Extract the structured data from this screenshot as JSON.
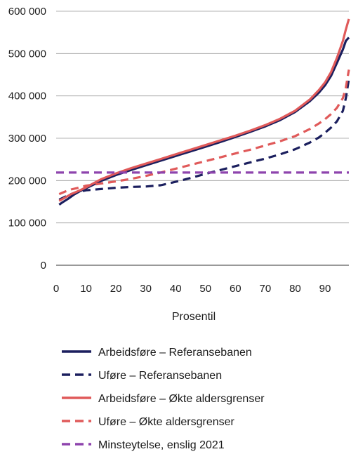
{
  "chart_data": {
    "type": "line",
    "xlabel": "Prosentil",
    "ylabel": "",
    "xlim": [
      0,
      98
    ],
    "ylim": [
      0,
      600000
    ],
    "x_ticks": [
      0,
      10,
      20,
      30,
      40,
      50,
      60,
      70,
      80,
      90
    ],
    "x_tick_labels": [
      "0",
      "10",
      "20",
      "30",
      "40",
      "50",
      "60",
      "70",
      "80",
      "90"
    ],
    "y_ticks": [
      0,
      100000,
      200000,
      300000,
      400000,
      500000,
      600000
    ],
    "y_tick_labels": [
      "0",
      "100 000",
      "200 000",
      "300 000",
      "400 000",
      "500 000",
      "600 000"
    ],
    "grid": "horizontal",
    "legend_position": "bottom",
    "series": [
      {
        "name": "Arbeidsføre – Referansebanen",
        "color": "#1b1f5e",
        "dash": "solid",
        "points": [
          [
            1,
            143000
          ],
          [
            2,
            148000
          ],
          [
            4,
            157000
          ],
          [
            6,
            167000
          ],
          [
            8,
            175000
          ],
          [
            10,
            182000
          ],
          [
            15,
            199000
          ],
          [
            20,
            213000
          ],
          [
            25,
            225000
          ],
          [
            30,
            236000
          ],
          [
            35,
            247000
          ],
          [
            40,
            258000
          ],
          [
            45,
            269000
          ],
          [
            50,
            280000
          ],
          [
            55,
            291000
          ],
          [
            60,
            303000
          ],
          [
            65,
            315000
          ],
          [
            70,
            328000
          ],
          [
            75,
            343000
          ],
          [
            80,
            362000
          ],
          [
            85,
            388000
          ],
          [
            88,
            408000
          ],
          [
            90,
            425000
          ],
          [
            92,
            447000
          ],
          [
            94,
            478000
          ],
          [
            96,
            510000
          ],
          [
            97,
            530000
          ],
          [
            98,
            538000
          ]
        ]
      },
      {
        "name": "Uføre – Referansebanen",
        "color": "#1b1f5e",
        "dash": "dashed",
        "points": [
          [
            1,
            155000
          ],
          [
            3,
            162000
          ],
          [
            5,
            168000
          ],
          [
            8,
            174000
          ],
          [
            10,
            177000
          ],
          [
            15,
            180000
          ],
          [
            20,
            183000
          ],
          [
            25,
            185000
          ],
          [
            30,
            186000
          ],
          [
            35,
            189000
          ],
          [
            40,
            197000
          ],
          [
            45,
            206000
          ],
          [
            50,
            216000
          ],
          [
            55,
            225000
          ],
          [
            60,
            234000
          ],
          [
            65,
            243000
          ],
          [
            70,
            252000
          ],
          [
            75,
            262000
          ],
          [
            80,
            274000
          ],
          [
            85,
            290000
          ],
          [
            88,
            302000
          ],
          [
            90,
            313000
          ],
          [
            92,
            325000
          ],
          [
            94,
            340000
          ],
          [
            96,
            365000
          ],
          [
            97,
            395000
          ],
          [
            98,
            440000
          ]
        ]
      },
      {
        "name": "Arbeidsføre – Økte aldersgrenser",
        "color": "#e05a5a",
        "dash": "solid",
        "points": [
          [
            1,
            152000
          ],
          [
            3,
            160000
          ],
          [
            5,
            168000
          ],
          [
            8,
            177000
          ],
          [
            10,
            184000
          ],
          [
            15,
            203000
          ],
          [
            20,
            217000
          ],
          [
            25,
            229000
          ],
          [
            30,
            240000
          ],
          [
            35,
            251000
          ],
          [
            40,
            262000
          ],
          [
            45,
            273000
          ],
          [
            50,
            284000
          ],
          [
            55,
            295000
          ],
          [
            60,
            306000
          ],
          [
            65,
            318000
          ],
          [
            70,
            331000
          ],
          [
            75,
            346000
          ],
          [
            80,
            365000
          ],
          [
            85,
            392000
          ],
          [
            88,
            414000
          ],
          [
            90,
            432000
          ],
          [
            92,
            456000
          ],
          [
            94,
            490000
          ],
          [
            96,
            530000
          ],
          [
            97,
            557000
          ],
          [
            98,
            582000
          ]
        ]
      },
      {
        "name": "Uføre – Økte aldersgrenser",
        "color": "#e05a5a",
        "dash": "dashed",
        "points": [
          [
            1,
            168000
          ],
          [
            3,
            174000
          ],
          [
            5,
            179000
          ],
          [
            8,
            184000
          ],
          [
            10,
            188000
          ],
          [
            15,
            193000
          ],
          [
            20,
            198000
          ],
          [
            25,
            204000
          ],
          [
            30,
            211000
          ],
          [
            35,
            219000
          ],
          [
            40,
            228000
          ],
          [
            45,
            237000
          ],
          [
            50,
            246000
          ],
          [
            55,
            255000
          ],
          [
            60,
            264000
          ],
          [
            65,
            273000
          ],
          [
            70,
            283000
          ],
          [
            75,
            293000
          ],
          [
            80,
            305000
          ],
          [
            85,
            322000
          ],
          [
            88,
            335000
          ],
          [
            90,
            345000
          ],
          [
            92,
            357000
          ],
          [
            94,
            372000
          ],
          [
            96,
            395000
          ],
          [
            97,
            420000
          ],
          [
            98,
            462000
          ]
        ]
      },
      {
        "name": "Minsteytelse, enslig 2021",
        "color": "#8e44ad",
        "dash": "dashed",
        "points": [
          [
            0,
            219000
          ],
          [
            98,
            219000
          ]
        ]
      }
    ]
  }
}
